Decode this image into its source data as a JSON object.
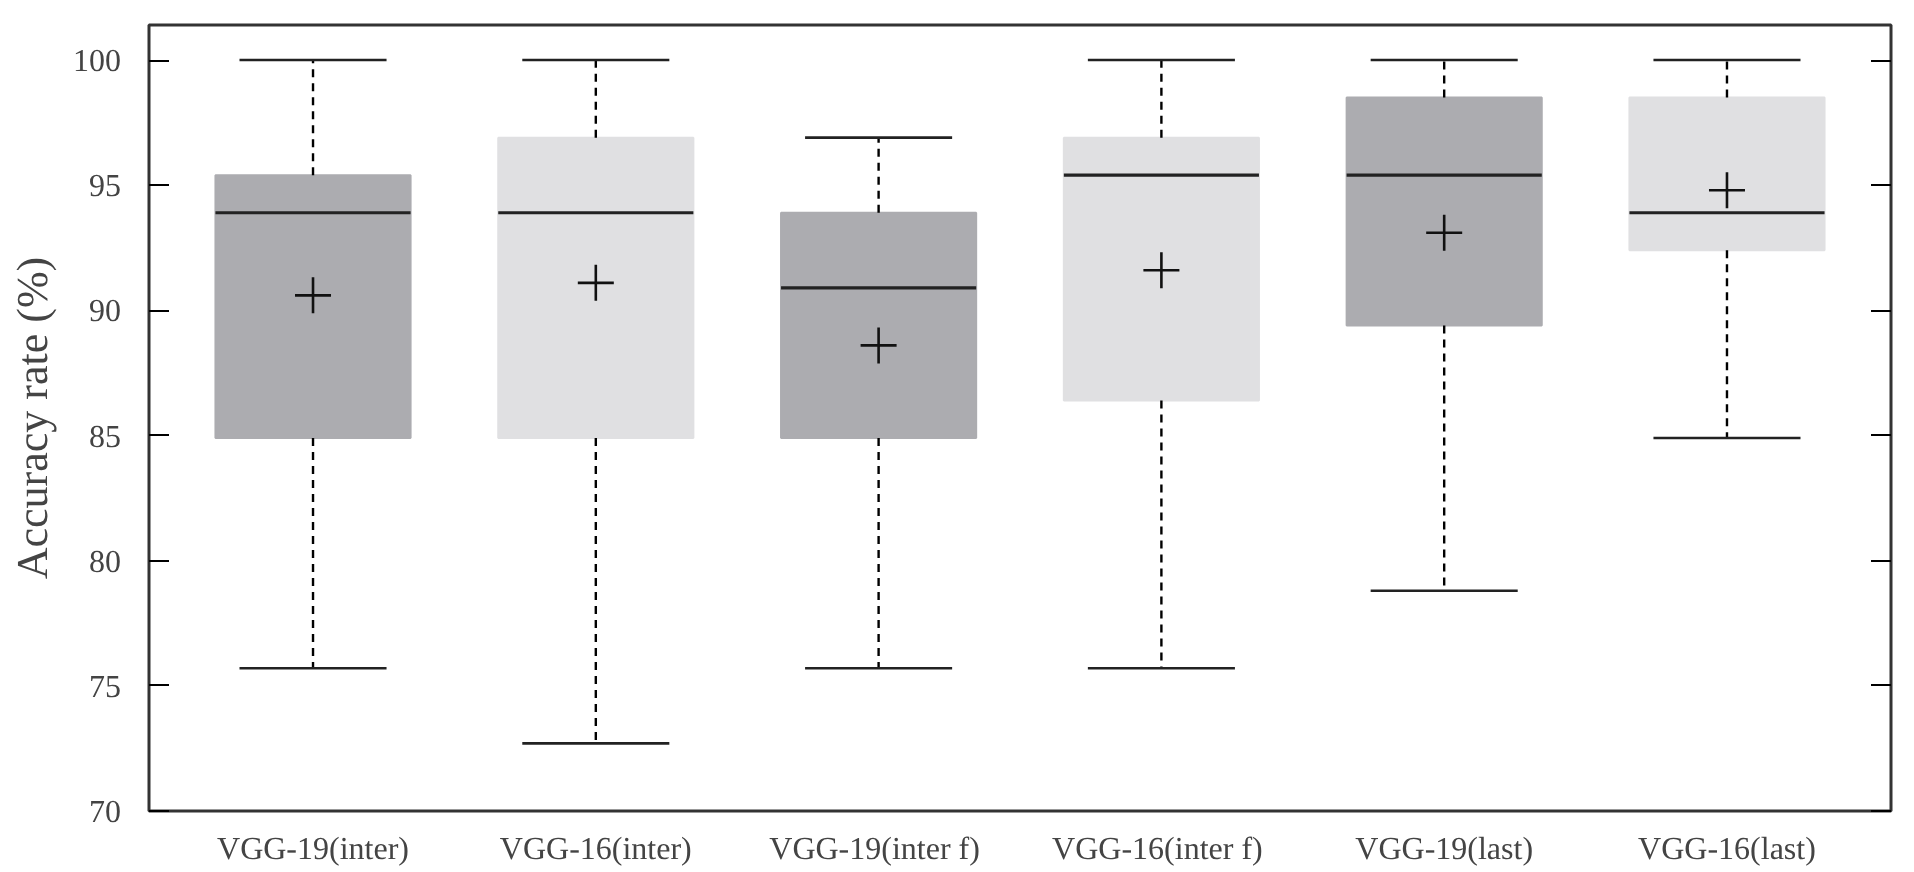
{
  "chart_data": {
    "type": "box",
    "ylabel": "Accuracy rate (%)",
    "categories": [
      "VGG-19(inter)",
      "VGG-16(inter)",
      "VGG-19(inter  f)",
      "VGG-16(inter  f)",
      "VGG-19(last)",
      "VGG-16(last)"
    ],
    "colors": [
      "#acacb0",
      "#e0e0e2",
      "#acacb0",
      "#e0e0e2",
      "#acacb0",
      "#e0e0e2"
    ],
    "boxes": [
      {
        "low": 75.7,
        "q1": 84.9,
        "median": 93.9,
        "q3": 95.4,
        "high": 100,
        "mean": 90.6
      },
      {
        "low": 72.7,
        "q1": 84.9,
        "median": 93.9,
        "q3": 96.9,
        "high": 100,
        "mean": 91.1
      },
      {
        "low": 75.7,
        "q1": 84.9,
        "median": 90.9,
        "q3": 93.9,
        "high": 96.9,
        "mean": 88.6
      },
      {
        "low": 75.7,
        "q1": 86.4,
        "median": 95.4,
        "q3": 96.9,
        "high": 100,
        "mean": 91.6
      },
      {
        "low": 78.8,
        "q1": 89.4,
        "median": 95.4,
        "q3": 98.5,
        "high": 100,
        "mean": 93.1
      },
      {
        "low": 84.9,
        "q1": 92.4,
        "median": 93.9,
        "q3": 98.5,
        "high": 100,
        "mean": 94.8
      }
    ],
    "ylim": [
      70,
      101.4
    ],
    "yticks": [
      70,
      75,
      80,
      85,
      90,
      95,
      100
    ]
  }
}
